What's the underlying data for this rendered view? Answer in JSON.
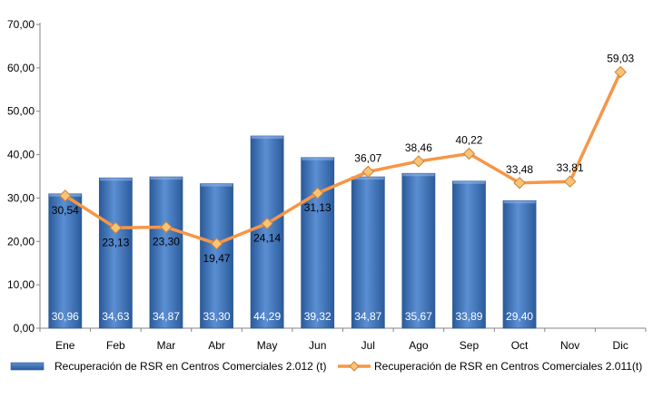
{
  "chart_data": {
    "type": "bar",
    "categories": [
      "Ene",
      "Feb",
      "Mar",
      "Abr",
      "May",
      "Jun",
      "Jul",
      "Ago",
      "Sep",
      "Oct",
      "Nov",
      "Dic"
    ],
    "ylim": [
      0,
      70
    ],
    "yticks": [
      "0,00",
      "10,00",
      "20,00",
      "30,00",
      "40,00",
      "50,00",
      "60,00",
      "70,00"
    ],
    "grid": false,
    "legend_position": "bottom",
    "series": [
      {
        "name": "Recuperación de RSR en Centros Comerciales 2.012 (t)",
        "type": "bar",
        "color": "#4f81bd",
        "values": [
          30.96,
          34.63,
          34.87,
          33.3,
          44.29,
          39.32,
          34.87,
          35.67,
          33.89,
          29.4,
          null,
          null
        ],
        "labels": [
          "30,96",
          "34,63",
          "34,87",
          "33,30",
          "44,29",
          "39,32",
          "34,87",
          "35,67",
          "33,89",
          "29,40",
          "",
          ""
        ]
      },
      {
        "name": "Recuperación de RSR en Centros Comerciales 2.011(t)",
        "type": "line",
        "color": "#f79646",
        "marker_color": "#fbc376",
        "values": [
          30.54,
          23.13,
          23.3,
          19.47,
          24.14,
          31.13,
          36.07,
          38.46,
          40.22,
          33.48,
          33.81,
          59.03
        ],
        "labels": [
          "30,54",
          "23,13",
          "23,30",
          "19,47",
          "24,14",
          "31,13",
          "36,07",
          "38,46",
          "40,22",
          "33,48",
          "33,81",
          "59,03"
        ]
      }
    ]
  }
}
